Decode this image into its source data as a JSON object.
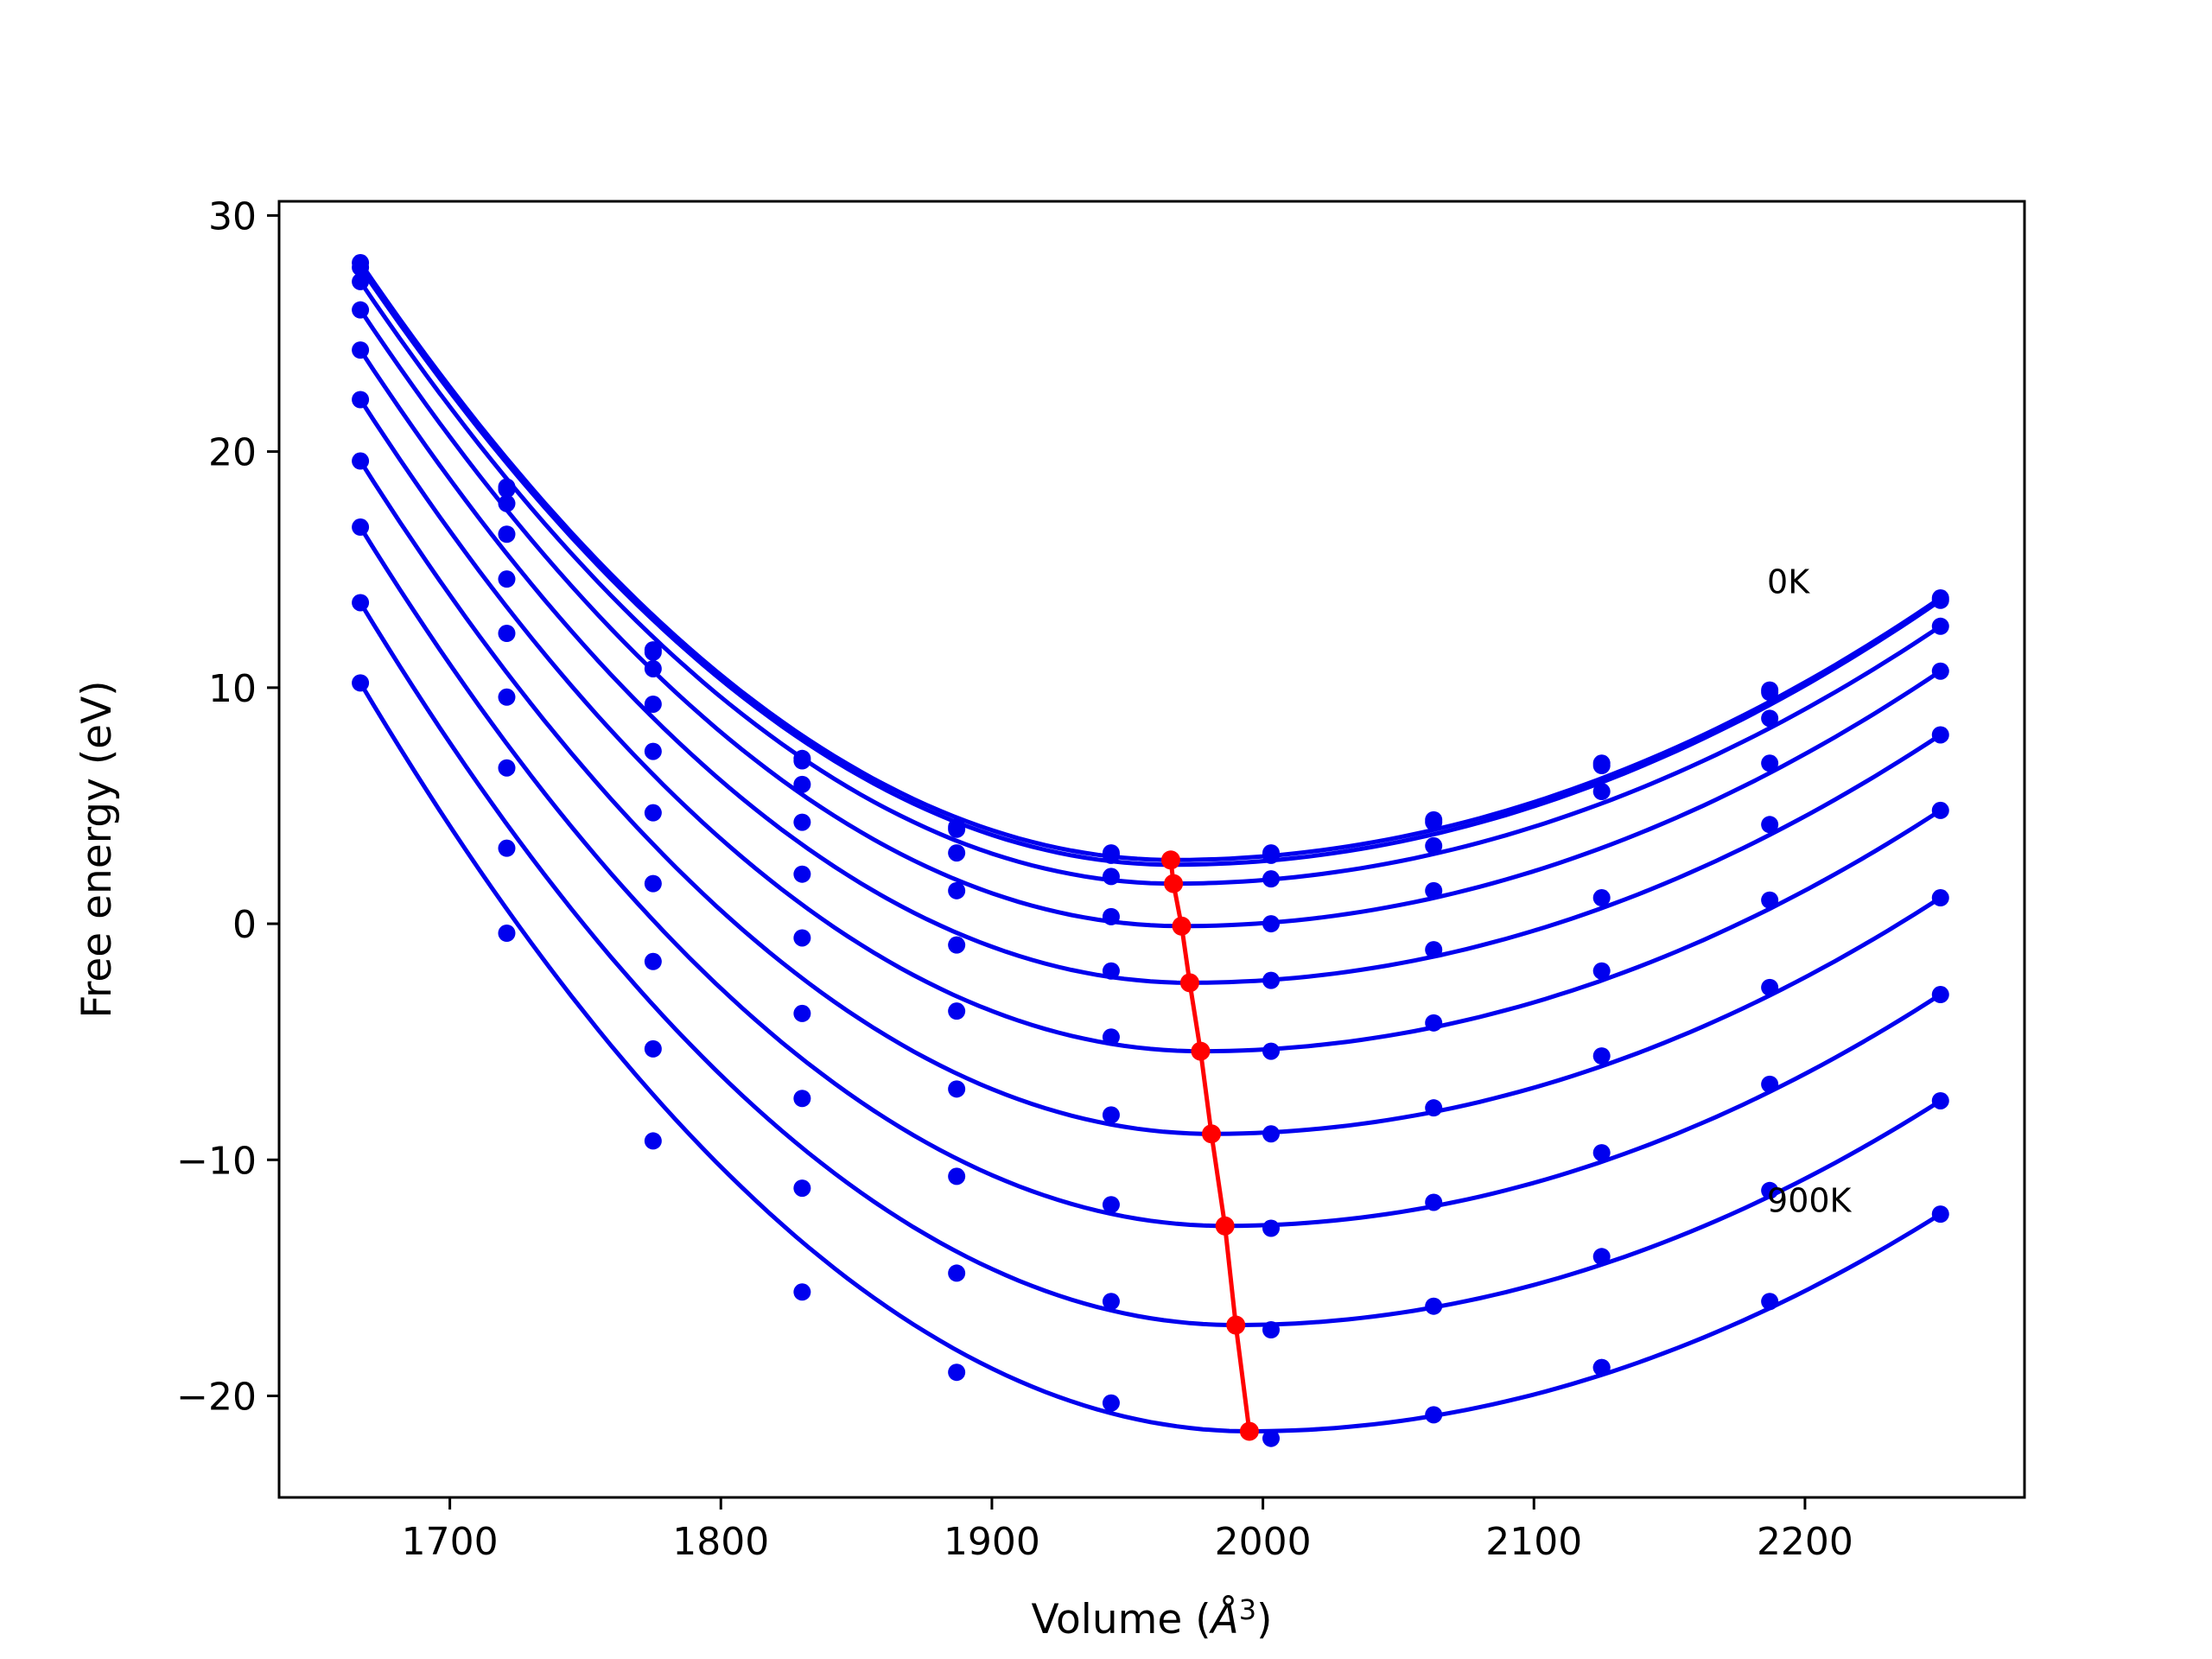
{
  "chart_data": {
    "type": "line",
    "xlabel": "Volume (",
    "xlabel_unit": "Å",
    "xlabel_exp": "3",
    "xlabel_close": ")",
    "ylabel": "Free energy (eV)",
    "xlim": [
      1637,
      2281
    ],
    "ylim": [
      -24.3,
      30.6
    ],
    "xticks": [
      1700,
      1800,
      1900,
      2000,
      2100,
      2200
    ],
    "yticks": [
      30,
      20,
      10,
      0,
      -10,
      -20
    ],
    "xtick_labels": [
      "1700",
      "1800",
      "1900",
      "2000",
      "2100",
      "2200"
    ],
    "ytick_labels": [
      "30",
      "20",
      "10",
      "0",
      "−10",
      "−20"
    ],
    "grid": false,
    "annotations": [
      {
        "text": "0K",
        "x": 2186,
        "y": 14.0
      },
      {
        "text": "900K",
        "x": 2186,
        "y": -12.2
      }
    ],
    "volumes": [
      1667,
      1721,
      1775,
      1830,
      1887,
      1944,
      2003,
      2063,
      2125,
      2187,
      2250
    ],
    "series": [
      {
        "values": [
          28.0,
          18.5,
          11.6,
          7.0,
          4.1,
          3.0,
          3.0,
          4.4,
          6.8,
          9.9,
          13.8
        ]
      },
      {
        "values": [
          27.8,
          18.4,
          11.5,
          6.9,
          4.0,
          2.9,
          2.9,
          4.3,
          6.7,
          9.8,
          13.7
        ]
      },
      {
        "values": [
          27.2,
          17.8,
          10.8,
          5.9,
          3.0,
          2.0,
          1.9,
          3.3,
          5.6,
          8.7,
          12.6
        ]
      },
      {
        "values": [
          26.0,
          16.5,
          9.3,
          4.3,
          1.4,
          0.3,
          0.0,
          1.4,
          1.1,
          6.8,
          10.7
        ]
      },
      {
        "values": [
          24.3,
          14.6,
          7.3,
          2.1,
          -0.9,
          -2.0,
          -2.4,
          -1.1,
          -2.0,
          4.2,
          8.0
        ]
      },
      {
        "values": [
          22.2,
          12.3,
          4.7,
          -0.6,
          -3.7,
          -4.8,
          -5.4,
          -4.2,
          -5.6,
          1.0,
          4.8
        ]
      },
      {
        "values": [
          19.6,
          9.6,
          1.7,
          -3.8,
          -7.0,
          -8.1,
          -8.9,
          -7.8,
          -9.7,
          -2.7,
          1.1
        ]
      },
      {
        "values": [
          16.8,
          6.6,
          -1.6,
          -7.4,
          -10.7,
          -11.9,
          -12.9,
          -11.8,
          -14.1,
          -6.8,
          -3.0
        ]
      },
      {
        "values": [
          13.6,
          3.2,
          -5.3,
          -11.2,
          -14.8,
          -16.0,
          -17.2,
          -16.2,
          -18.8,
          -11.3,
          -7.5
        ]
      },
      {
        "values": [
          10.2,
          -0.4,
          -9.2,
          -15.6,
          -19.0,
          -20.3,
          -21.8,
          -20.8,
          -18.8,
          -16.0,
          -12.3
        ]
      }
    ],
    "fits": [
      {
        "v0": 1967,
        "e0": 2.7
      },
      {
        "v0": 1967,
        "e0": 2.5
      },
      {
        "v0": 1967,
        "e0": 1.7
      },
      {
        "v0": 1970,
        "e0": -0.1
      },
      {
        "v0": 1973,
        "e0": -2.5
      },
      {
        "v0": 1977,
        "e0": -5.4
      },
      {
        "v0": 1981,
        "e0": -8.9
      },
      {
        "v0": 1986,
        "e0": -12.8
      },
      {
        "v0": 1990,
        "e0": -17.0
      },
      {
        "v0": 1995,
        "e0": -21.5
      }
    ],
    "equilibrium_line": {
      "x": [
        1966,
        1967,
        1970,
        1973,
        1977,
        1981,
        1986,
        1990,
        1995
      ],
      "y": [
        2.7,
        1.7,
        -0.1,
        -2.5,
        -5.4,
        -8.9,
        -12.8,
        -17.0,
        -21.5
      ]
    },
    "colors": {
      "series": "#0000ee",
      "equilibrium": "#ff0000",
      "axes": "#000000"
    }
  }
}
